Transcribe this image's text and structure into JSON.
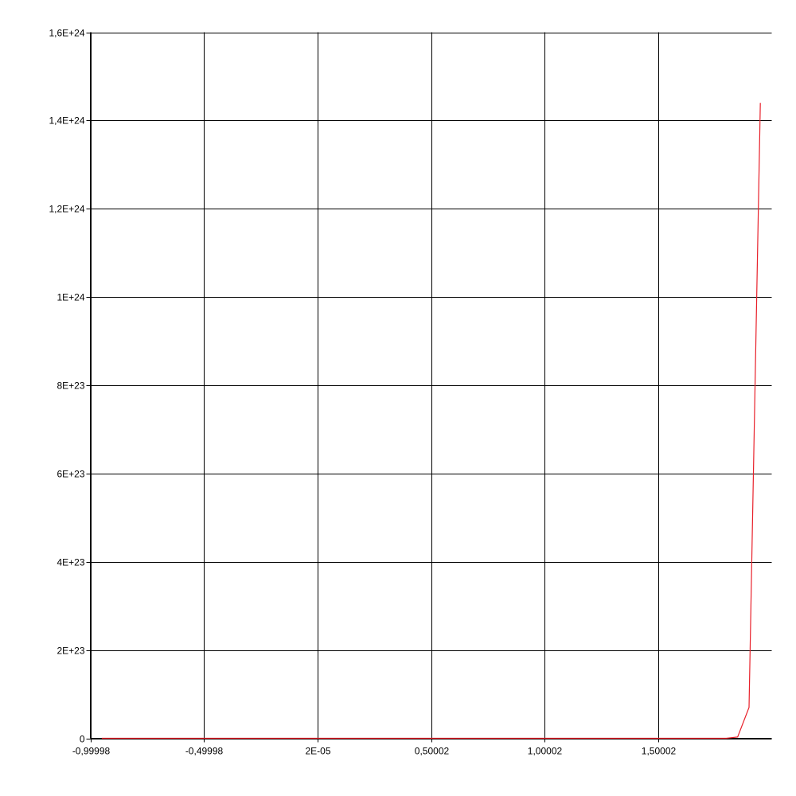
{
  "chart_data": {
    "type": "line",
    "title": "",
    "xlabel": "",
    "ylabel": "",
    "grid": true,
    "legend": "none",
    "xlim": [
      -0.99998,
      2.0
    ],
    "ylim": [
      0,
      1.6e+24
    ],
    "x_ticks": [
      {
        "value": -0.99998,
        "label": "-0,99998"
      },
      {
        "value": -0.49998,
        "label": "-0,49998"
      },
      {
        "value": 2e-05,
        "label": "2E-05"
      },
      {
        "value": 0.50002,
        "label": "0,50002"
      },
      {
        "value": 1.00002,
        "label": "1,00002"
      },
      {
        "value": 1.50002,
        "label": "1,50002"
      }
    ],
    "y_ticks": [
      {
        "value": 0,
        "label": "0"
      },
      {
        "value": 2e+23,
        "label": "2E+23"
      },
      {
        "value": 4e+23,
        "label": "4E+23"
      },
      {
        "value": 6e+23,
        "label": "6E+23"
      },
      {
        "value": 8e+23,
        "label": "8E+23"
      },
      {
        "value": 1e+24,
        "label": "1E+24"
      },
      {
        "value": 1.2e+24,
        "label": "1,2E+24"
      },
      {
        "value": 1.4e+24,
        "label": "1,4E+24"
      },
      {
        "value": 1.6e+24,
        "label": "1,6E+24"
      }
    ],
    "series": [
      {
        "color": "#e8202a",
        "x": [
          -0.94998,
          1.75002,
          1.80002,
          1.85002,
          1.90002,
          1.95002
        ],
        "y": [
          0,
          0,
          0,
          3e+21,
          7e+22,
          1.44e+24
        ]
      }
    ]
  }
}
